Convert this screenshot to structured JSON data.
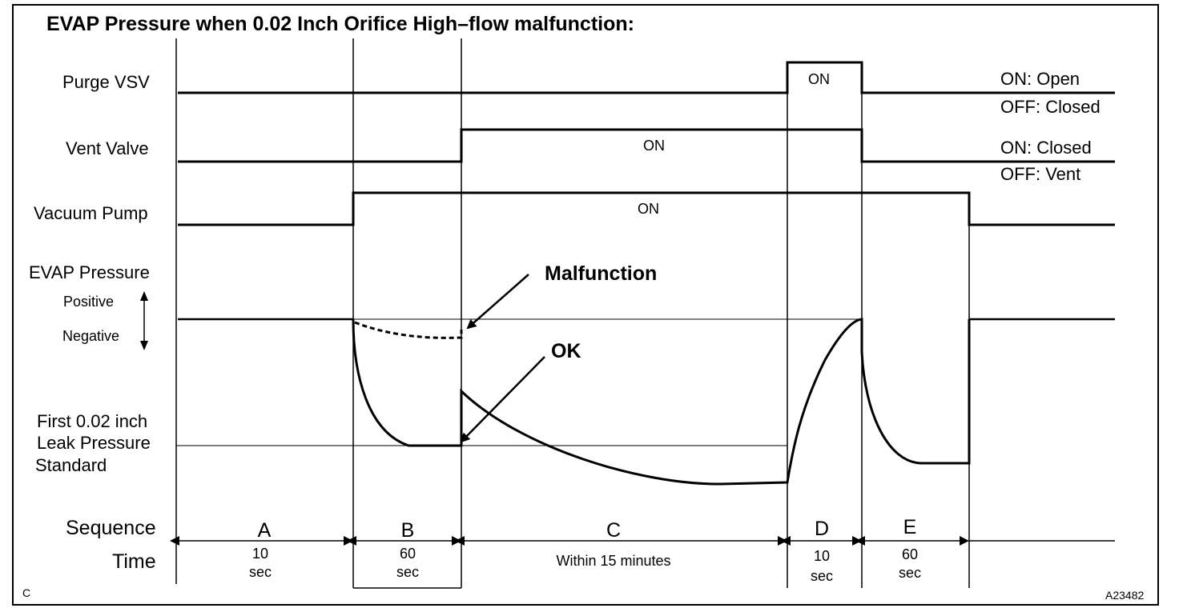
{
  "title": "EVAP Pressure when 0.02 Inch Orifice High–flow malfunction:",
  "rows": {
    "purge_vsv": {
      "label": "Purge VSV",
      "on_text": "ON",
      "legend_on": "ON: Open",
      "legend_off": "OFF: Closed"
    },
    "vent_valve": {
      "label": "Vent Valve",
      "on_text": "ON",
      "legend_on": "ON: Closed",
      "legend_off": "OFF: Vent"
    },
    "vacuum_pump": {
      "label": "Vacuum Pump",
      "on_text": "ON"
    },
    "evap_pressure": {
      "label": "EVAP Pressure",
      "positive": "Positive",
      "negative": "Negative"
    },
    "leak_standard": {
      "line1": "First 0.02 inch",
      "line2": "Leak Pressure",
      "line3": "Standard"
    }
  },
  "annotations": {
    "malfunction": "Malfunction",
    "ok": "OK"
  },
  "sequence": {
    "label": "Sequence",
    "time_label": "Time",
    "steps": [
      {
        "letter": "A",
        "time1": "10",
        "time2": "sec"
      },
      {
        "letter": "B",
        "time1": "60",
        "time2": "sec"
      },
      {
        "letter": "C",
        "time1": "Within 15 minutes",
        "time2": ""
      },
      {
        "letter": "D",
        "time1": "10",
        "time2": "sec"
      },
      {
        "letter": "E",
        "time1": "60",
        "time2": "sec"
      }
    ]
  },
  "corner_left": "C",
  "corner_right": "A23482"
}
